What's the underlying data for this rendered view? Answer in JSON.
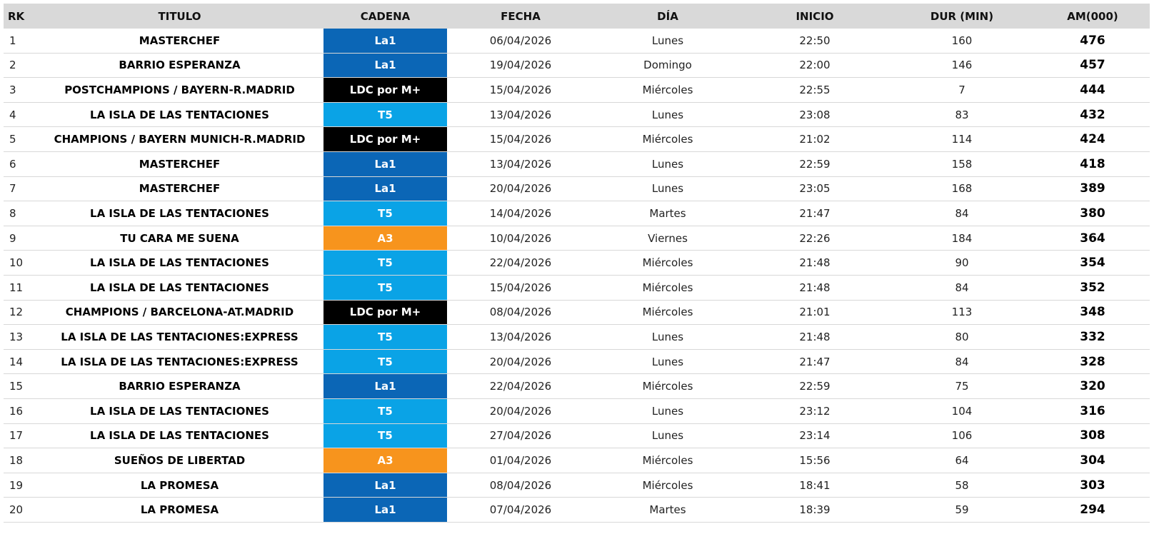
{
  "table": {
    "header": [
      "RK",
      "TITULO",
      "CADENA",
      "FECHA",
      "DÍA",
      "INICIO",
      "DUR (MIN)",
      "AM(000)"
    ],
    "rows": [
      [
        1,
        "MASTERCHEF",
        "La1",
        "06/04/2026",
        "Lunes",
        "22:50",
        160,
        476
      ],
      [
        2,
        "BARRIO ESPERANZA",
        "La1",
        "19/04/2026",
        "Domingo",
        "22:00",
        146,
        457
      ],
      [
        3,
        "POSTCHAMPIONS / BAYERN-R.MADRID",
        "LDC por M+",
        "15/04/2026",
        "Miércoles",
        "22:55",
        7,
        444
      ],
      [
        4,
        "LA ISLA DE LAS TENTACIONES",
        "T5",
        "13/04/2026",
        "Lunes",
        "23:08",
        83,
        432
      ],
      [
        5,
        "CHAMPIONS / BAYERN MUNICH-R.MADRID",
        "LDC por M+",
        "15/04/2026",
        "Miércoles",
        "21:02",
        114,
        424
      ],
      [
        6,
        "MASTERCHEF",
        "La1",
        "13/04/2026",
        "Lunes",
        "22:59",
        158,
        418
      ],
      [
        7,
        "MASTERCHEF",
        "La1",
        "20/04/2026",
        "Lunes",
        "23:05",
        168,
        389
      ],
      [
        8,
        "LA ISLA DE LAS TENTACIONES",
        "T5",
        "14/04/2026",
        "Martes",
        "21:47",
        84,
        380
      ],
      [
        9,
        "TU CARA ME SUENA",
        "A3",
        "10/04/2026",
        "Viernes",
        "22:26",
        184,
        364
      ],
      [
        10,
        "LA ISLA DE LAS TENTACIONES",
        "T5",
        "22/04/2026",
        "Miércoles",
        "21:48",
        90,
        354
      ],
      [
        11,
        "LA ISLA DE LAS TENTACIONES",
        "T5",
        "15/04/2026",
        "Miércoles",
        "21:48",
        84,
        352
      ],
      [
        12,
        "CHAMPIONS / BARCELONA-AT.MADRID",
        "LDC por M+",
        "08/04/2026",
        "Miércoles",
        "21:01",
        113,
        348
      ],
      [
        13,
        "LA ISLA DE LAS TENTACIONES:EXPRESS",
        "T5",
        "13/04/2026",
        "Lunes",
        "21:48",
        80,
        332
      ],
      [
        14,
        "LA ISLA DE LAS TENTACIONES:EXPRESS",
        "T5",
        "20/04/2026",
        "Lunes",
        "21:47",
        84,
        328
      ],
      [
        15,
        "BARRIO ESPERANZA",
        "La1",
        "22/04/2026",
        "Miércoles",
        "22:59",
        75,
        320
      ],
      [
        16,
        "LA ISLA DE LAS TENTACIONES",
        "T5",
        "20/04/2026",
        "Lunes",
        "23:12",
        104,
        316
      ],
      [
        17,
        "LA ISLA DE LAS TENTACIONES",
        "T5",
        "27/04/2026",
        "Lunes",
        "23:14",
        106,
        308
      ],
      [
        18,
        "SUEÑOS DE LIBERTAD",
        "A3",
        "01/04/2026",
        "Miércoles",
        "15:56",
        64,
        304
      ],
      [
        19,
        "LA PROMESA",
        "La1",
        "08/04/2026",
        "Miércoles",
        "18:41",
        58,
        303
      ],
      [
        20,
        "LA PROMESA",
        "La1",
        "07/04/2026",
        "Martes",
        "18:39",
        59,
        294
      ]
    ],
    "cadena_colors": [
      "#0b66b6",
      "#0b66b6",
      "#000000",
      "#0aa3e6",
      "#000000",
      "#0b66b6",
      "#0b66b6",
      "#0aa3e6",
      "#f7941d",
      "#0aa3e6",
      "#0aa3e6",
      "#000000",
      "#0aa3e6",
      "#0aa3e6",
      "#0b66b6",
      "#0aa3e6",
      "#0aa3e6",
      "#f7941d",
      "#0b66b6",
      "#0b66b6"
    ]
  }
}
